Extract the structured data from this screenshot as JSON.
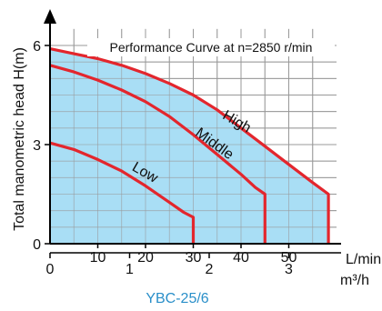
{
  "chart_data": {
    "type": "line",
    "title": "Performance Curve at n=2850 r/min",
    "ylabel": "Total manometric head H(m)",
    "xlabel_lpm": "L/min",
    "xlabel_m3h": "m³/h",
    "model": "YBC-25/6",
    "ylim": [
      0,
      6.5
    ],
    "xlim_lpm": [
      0,
      60
    ],
    "y_ticks": [
      {
        "value": 0,
        "label": "0"
      },
      {
        "value": 3,
        "label": "3"
      },
      {
        "value": 6,
        "label": "6"
      }
    ],
    "x_ticks_lpm": [
      {
        "value": 10,
        "label": "10"
      },
      {
        "value": 20,
        "label": "20"
      },
      {
        "value": 30,
        "label": "30"
      },
      {
        "value": 40,
        "label": "40"
      },
      {
        "value": 50,
        "label": "50"
      }
    ],
    "x_ticks_m3h": [
      {
        "value": 0,
        "label": "0"
      },
      {
        "value": 1,
        "label": "1"
      },
      {
        "value": 2,
        "label": "2"
      },
      {
        "value": 3,
        "label": "3"
      }
    ],
    "grid": true,
    "series": [
      {
        "name": "High",
        "points": [
          [
            0,
            5.9
          ],
          [
            5,
            5.75
          ],
          [
            10,
            5.6
          ],
          [
            15,
            5.4
          ],
          [
            20,
            5.15
          ],
          [
            25,
            4.85
          ],
          [
            30,
            4.5
          ],
          [
            35,
            4.05
          ],
          [
            40,
            3.5
          ],
          [
            45,
            2.95
          ],
          [
            50,
            2.4
          ],
          [
            55,
            1.85
          ],
          [
            58.3,
            1.5
          ],
          [
            58.3,
            0
          ]
        ]
      },
      {
        "name": "Middle",
        "points": [
          [
            0,
            5.4
          ],
          [
            5,
            5.2
          ],
          [
            10,
            4.95
          ],
          [
            15,
            4.65
          ],
          [
            20,
            4.3
          ],
          [
            25,
            3.85
          ],
          [
            30,
            3.3
          ],
          [
            35,
            2.7
          ],
          [
            40,
            2.1
          ],
          [
            43,
            1.7
          ],
          [
            45,
            1.5
          ],
          [
            45,
            0
          ]
        ]
      },
      {
        "name": "Low",
        "points": [
          [
            0,
            3.05
          ],
          [
            5,
            2.85
          ],
          [
            10,
            2.55
          ],
          [
            15,
            2.2
          ],
          [
            20,
            1.75
          ],
          [
            25,
            1.25
          ],
          [
            28,
            0.95
          ],
          [
            30,
            0.8
          ],
          [
            30,
            0
          ]
        ]
      }
    ],
    "colors": {
      "curve": "#e3262d",
      "fill": "#a9def5",
      "grid": "#999999",
      "axis": "#000000",
      "model": "#2a8fc9"
    }
  }
}
